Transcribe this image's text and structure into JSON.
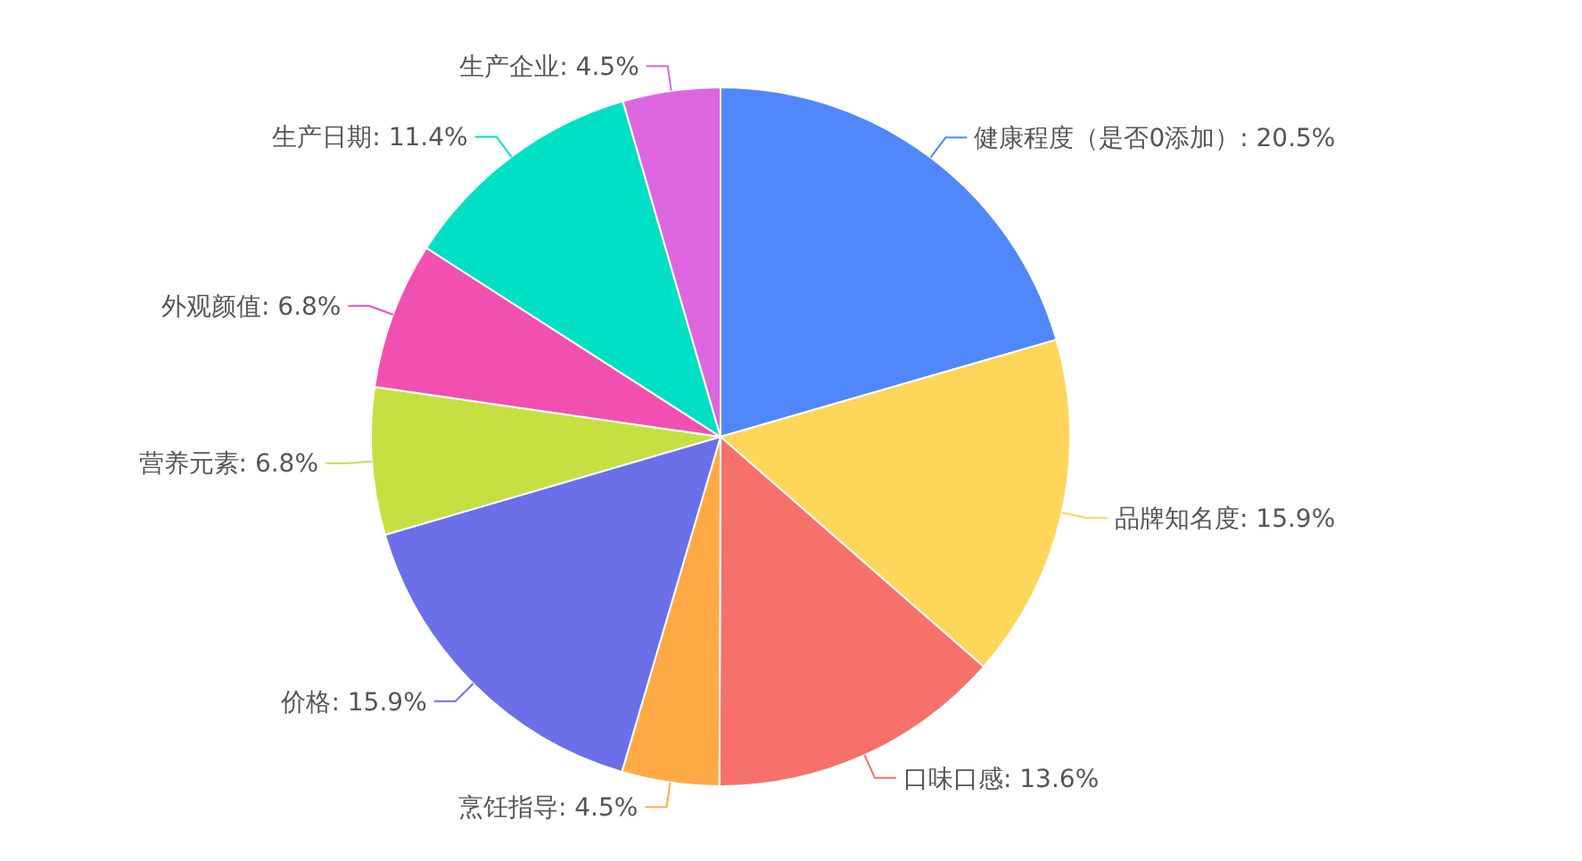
{
  "chart_data": {
    "type": "pie",
    "categories": [
      "健康程度（是否0添加）",
      "品牌知名度",
      "口味口感",
      "烹饪指导",
      "价格",
      "营养元素",
      "外观颜值",
      "生产日期",
      "生产企业"
    ],
    "values": [
      20.5,
      15.9,
      13.6,
      4.5,
      15.9,
      6.8,
      6.8,
      11.4,
      4.5
    ],
    "value_labels": [
      "20.5%",
      "15.9%",
      "13.6%",
      "4.5%",
      "15.9%",
      "6.8%",
      "6.8%",
      "11.4%",
      "4.5%"
    ],
    "colors": [
      "#5087fb",
      "#fdd65a",
      "#f6716a",
      "#ffaa45",
      "#6b70e8",
      "#c6e041",
      "#f250b0",
      "#00e0c4",
      "#dd66e0"
    ]
  }
}
